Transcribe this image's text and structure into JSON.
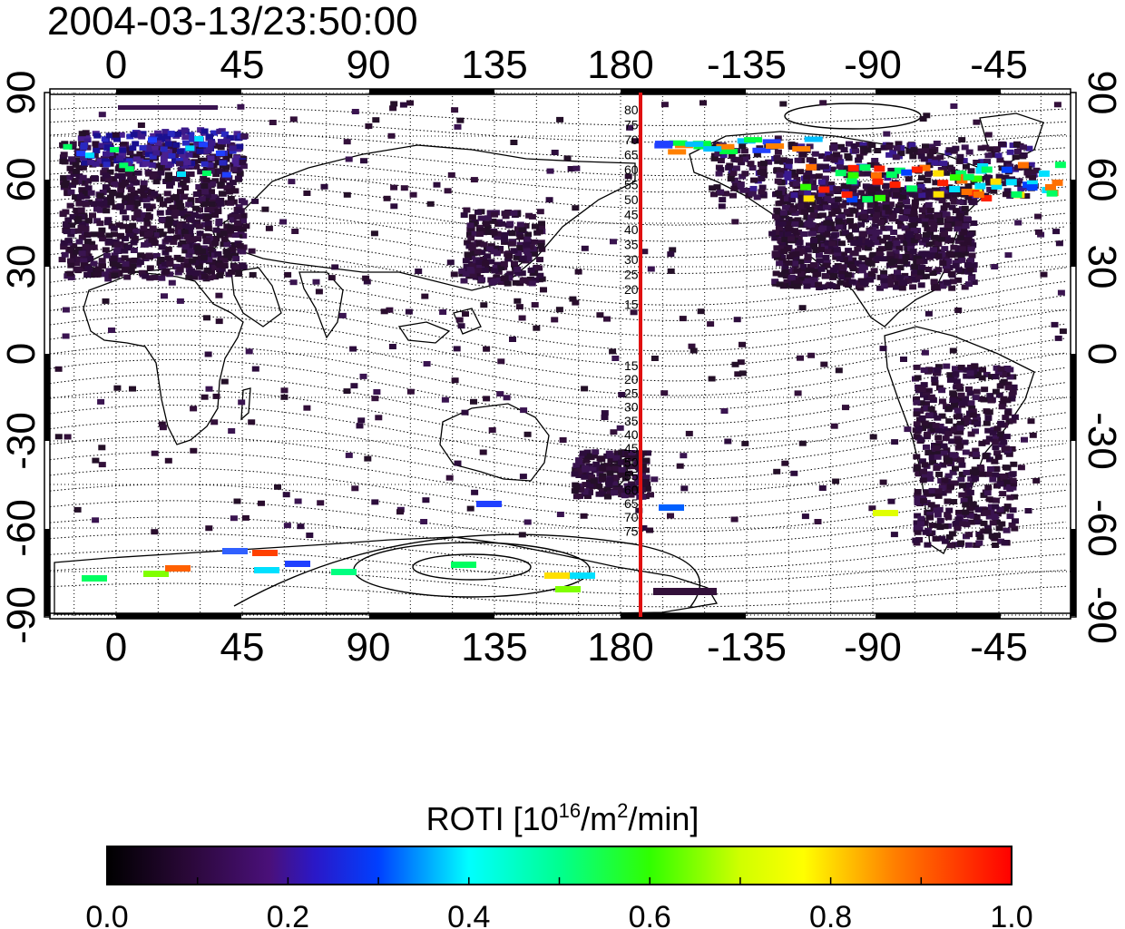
{
  "title": "2004-03-13/23:50:00",
  "map": {
    "lon_ticks_top": [
      "0",
      "45",
      "90",
      "135",
      "180",
      "-135",
      "-90",
      "-45"
    ],
    "lon_ticks_bottom": [
      "0",
      "45",
      "90",
      "135",
      "180",
      "-135",
      "-90",
      "-45"
    ],
    "lat_ticks_left": [
      "90",
      "60",
      "30",
      "0",
      "-30",
      "-60",
      "-90"
    ],
    "lat_ticks_right": [
      "90",
      "60",
      "30",
      "0",
      "-30",
      "-60",
      "-90"
    ],
    "meridian_marker_lon": 180,
    "meridian_marker_color": "#e01010",
    "mlat_labels_north": [
      "80",
      "75",
      "70",
      "65",
      "60",
      "55",
      "50",
      "45",
      "40",
      "35",
      "30",
      "25",
      "20",
      "15"
    ],
    "mlat_labels_south": [
      "15",
      "20",
      "25",
      "30",
      "35",
      "40",
      "45",
      "50",
      "55",
      "60",
      "65",
      "70",
      "75"
    ]
  },
  "colorbar": {
    "label_main": "ROTI  [10",
    "label_exp1": "16",
    "label_mid": "/m",
    "label_exp2": "2",
    "label_end": "/min]",
    "ticks": [
      "0.0",
      "0.2",
      "0.4",
      "0.6",
      "0.8",
      "1.0"
    ],
    "colors": [
      "#000000",
      "#3c0a5a",
      "#5a1aa0",
      "#0000ff",
      "#00ffff",
      "#00ff00",
      "#ffff00",
      "#ff8000",
      "#ff0000"
    ]
  }
}
